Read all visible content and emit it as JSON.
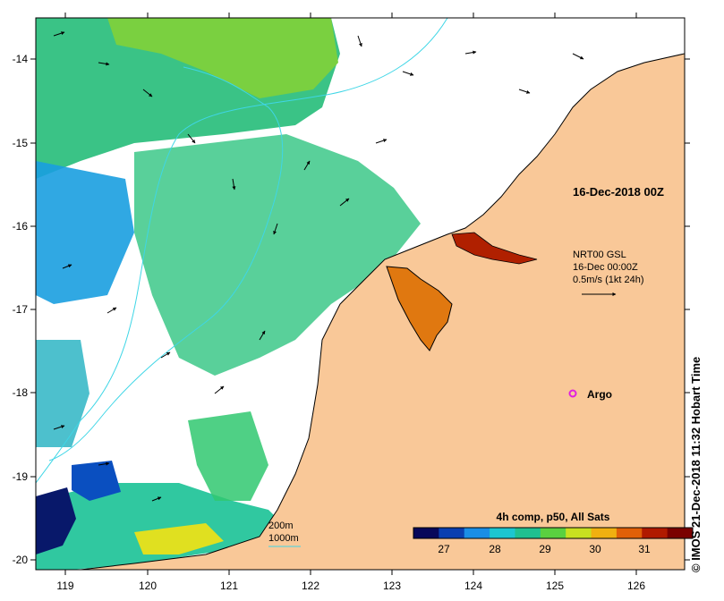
{
  "map": {
    "x_ticks": [
      "119",
      "120",
      "121",
      "122",
      "123",
      "124",
      "125",
      "126"
    ],
    "y_ticks": [
      "-14",
      "-15",
      "-16",
      "-17",
      "-18",
      "-19",
      "-20"
    ],
    "colors": {
      "land": "#f9c898",
      "coast": "#000000",
      "no_data": "#ffffff",
      "isobath": "#3fd6e6",
      "argo_marker": "#e020e0"
    }
  },
  "timestamp_label": "16-Dec-2018 00Z",
  "info_block": {
    "line1": "NRT00 GSL",
    "line2": "16-Dec 00:00Z",
    "line3": "0.5m/s (1kt 24h)"
  },
  "argo_label": "Argo",
  "isobath_legend": {
    "label1": "200m",
    "label2": "1000m"
  },
  "colorbar": {
    "title": "4h comp, p50, All Sats",
    "ticks": [
      "27",
      "28",
      "29",
      "30",
      "31"
    ],
    "colors": [
      "#08085a",
      "#0a3fb0",
      "#1a8ee6",
      "#1cc6d0",
      "#20c090",
      "#5ad040",
      "#c8e020",
      "#f0b010",
      "#e06008",
      "#b01a00",
      "#7a0000"
    ]
  },
  "credit": "© IMOS 21-Dec-2018 11:32 Hobart Time"
}
